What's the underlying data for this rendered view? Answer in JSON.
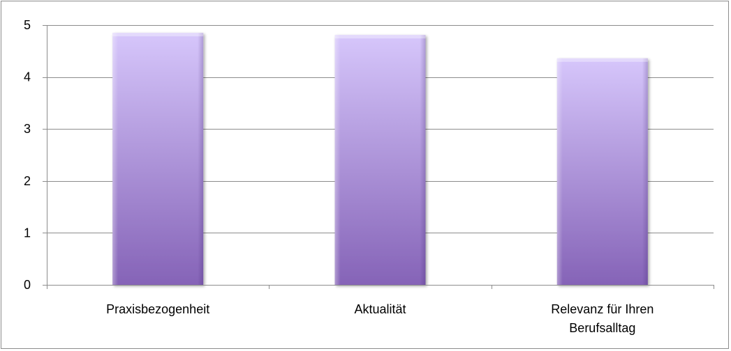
{
  "chart_data": {
    "type": "bar",
    "title": "",
    "xlabel": "",
    "ylabel": "",
    "categories": [
      [
        "Praxisbezogenheit"
      ],
      [
        "Aktualität"
      ],
      [
        "Relevanz für Ihren",
        "Berufsalltag"
      ]
    ],
    "values": [
      4.85,
      4.81,
      4.36
    ],
    "ylim": [
      0,
      5
    ],
    "yticks": [
      "0",
      "1",
      "2",
      "3",
      "4",
      "5"
    ],
    "grid": true,
    "legend": "none",
    "colors": {
      "bar_top": "#d6c6fb",
      "bar_bottom": "#8563b7",
      "gridline": "#8c8c8c",
      "axis": "#8c8c8c",
      "border": "#8c8c8c"
    }
  }
}
